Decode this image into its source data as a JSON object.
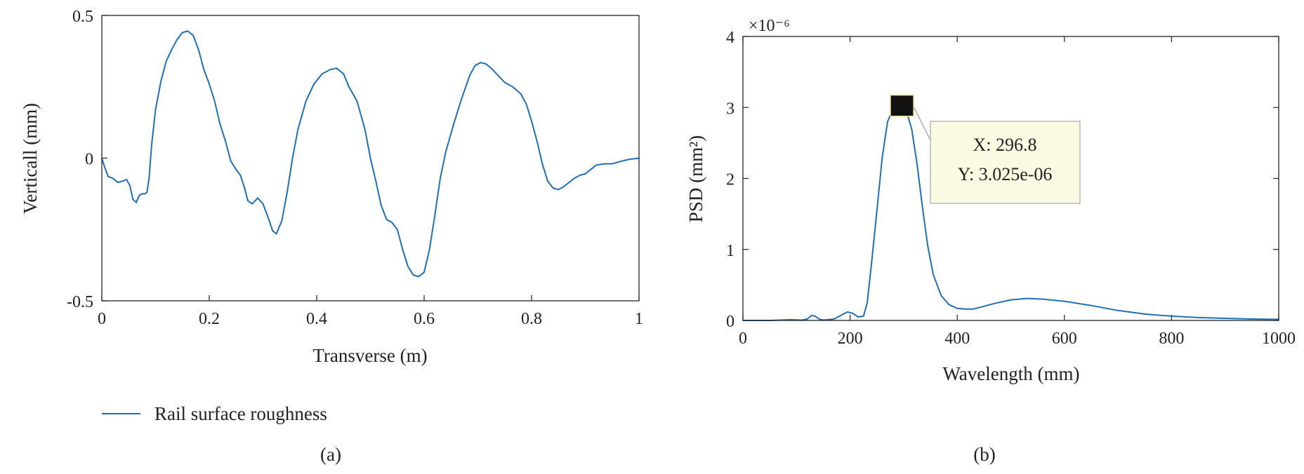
{
  "chart_data": [
    {
      "type": "line",
      "caption": "(a)",
      "xlabel": "Transverse (m)",
      "ylabel": "Verticall (mm)",
      "xlim": [
        0,
        1
      ],
      "ylim": [
        -0.5,
        0.5
      ],
      "xticks": [
        "0",
        "0.2",
        "0.4",
        "0.6",
        "0.8",
        "1"
      ],
      "yticks": [
        "-0.5",
        "0",
        "0.5"
      ],
      "legend": {
        "entries": [
          "Rail surface roughness"
        ],
        "placement": "below-left"
      },
      "grid": false,
      "series": [
        {
          "name": "Rail surface roughness",
          "color": "#1f6fb7",
          "points": [
            [
              0.0,
              0.0
            ],
            [
              0.005,
              -0.03
            ],
            [
              0.012,
              -0.065
            ],
            [
              0.02,
              -0.07
            ],
            [
              0.03,
              -0.085
            ],
            [
              0.04,
              -0.08
            ],
            [
              0.046,
              -0.075
            ],
            [
              0.052,
              -0.095
            ],
            [
              0.058,
              -0.145
            ],
            [
              0.064,
              -0.155
            ],
            [
              0.07,
              -0.13
            ],
            [
              0.075,
              -0.125
            ],
            [
              0.08,
              -0.125
            ],
            [
              0.084,
              -0.12
            ],
            [
              0.088,
              -0.07
            ],
            [
              0.093,
              0.05
            ],
            [
              0.1,
              0.17
            ],
            [
              0.11,
              0.27
            ],
            [
              0.12,
              0.34
            ],
            [
              0.13,
              0.38
            ],
            [
              0.14,
              0.415
            ],
            [
              0.15,
              0.44
            ],
            [
              0.16,
              0.445
            ],
            [
              0.17,
              0.43
            ],
            [
              0.18,
              0.38
            ],
            [
              0.19,
              0.31
            ],
            [
              0.2,
              0.26
            ],
            [
              0.21,
              0.2
            ],
            [
              0.22,
              0.12
            ],
            [
              0.23,
              0.06
            ],
            [
              0.24,
              -0.01
            ],
            [
              0.25,
              -0.04
            ],
            [
              0.258,
              -0.06
            ],
            [
              0.265,
              -0.1
            ],
            [
              0.272,
              -0.15
            ],
            [
              0.28,
              -0.16
            ],
            [
              0.29,
              -0.14
            ],
            [
              0.3,
              -0.16
            ],
            [
              0.31,
              -0.21
            ],
            [
              0.318,
              -0.255
            ],
            [
              0.325,
              -0.265
            ],
            [
              0.335,
              -0.22
            ],
            [
              0.345,
              -0.12
            ],
            [
              0.355,
              0.0
            ],
            [
              0.365,
              0.1
            ],
            [
              0.38,
              0.2
            ],
            [
              0.395,
              0.26
            ],
            [
              0.41,
              0.295
            ],
            [
              0.425,
              0.31
            ],
            [
              0.437,
              0.315
            ],
            [
              0.45,
              0.295
            ],
            [
              0.46,
              0.25
            ],
            [
              0.475,
              0.2
            ],
            [
              0.49,
              0.1
            ],
            [
              0.5,
              0.0
            ],
            [
              0.51,
              -0.08
            ],
            [
              0.52,
              -0.165
            ],
            [
              0.53,
              -0.215
            ],
            [
              0.54,
              -0.225
            ],
            [
              0.55,
              -0.25
            ],
            [
              0.56,
              -0.32
            ],
            [
              0.57,
              -0.38
            ],
            [
              0.58,
              -0.41
            ],
            [
              0.59,
              -0.415
            ],
            [
              0.6,
              -0.4
            ],
            [
              0.61,
              -0.32
            ],
            [
              0.62,
              -0.2
            ],
            [
              0.63,
              -0.07
            ],
            [
              0.64,
              0.02
            ],
            [
              0.655,
              0.12
            ],
            [
              0.67,
              0.21
            ],
            [
              0.685,
              0.29
            ],
            [
              0.695,
              0.325
            ],
            [
              0.705,
              0.335
            ],
            [
              0.715,
              0.33
            ],
            [
              0.725,
              0.315
            ],
            [
              0.74,
              0.285
            ],
            [
              0.75,
              0.265
            ],
            [
              0.765,
              0.25
            ],
            [
              0.78,
              0.225
            ],
            [
              0.79,
              0.19
            ],
            [
              0.8,
              0.13
            ],
            [
              0.81,
              0.06
            ],
            [
              0.82,
              -0.02
            ],
            [
              0.83,
              -0.08
            ],
            [
              0.84,
              -0.105
            ],
            [
              0.85,
              -0.11
            ],
            [
              0.86,
              -0.1
            ],
            [
              0.87,
              -0.085
            ],
            [
              0.88,
              -0.07
            ],
            [
              0.89,
              -0.06
            ],
            [
              0.9,
              -0.055
            ],
            [
              0.91,
              -0.04
            ],
            [
              0.92,
              -0.025
            ],
            [
              0.935,
              -0.02
            ],
            [
              0.95,
              -0.02
            ],
            [
              0.965,
              -0.012
            ],
            [
              0.98,
              -0.005
            ],
            [
              1.0,
              0.0
            ]
          ]
        }
      ]
    },
    {
      "type": "line",
      "caption": "(b)",
      "xlabel": "Wavelength (mm)",
      "ylabel": "PSD (mm²)",
      "y_multiplier": "×10⁻⁶",
      "xlim": [
        0,
        1000
      ],
      "ylim": [
        0,
        4
      ],
      "xticks": [
        "0",
        "200",
        "400",
        "600",
        "800",
        "1000"
      ],
      "yticks": [
        "0",
        "1",
        "2",
        "3",
        "4"
      ],
      "grid": false,
      "series": [
        {
          "color": "#1f6fb7",
          "points": [
            [
              0,
              0.0
            ],
            [
              50,
              0.0
            ],
            [
              70,
              0.005
            ],
            [
              90,
              0.01
            ],
            [
              110,
              0.005
            ],
            [
              120,
              0.02
            ],
            [
              128,
              0.07
            ],
            [
              135,
              0.06
            ],
            [
              142,
              0.02
            ],
            [
              150,
              0.005
            ],
            [
              170,
              0.02
            ],
            [
              185,
              0.08
            ],
            [
              195,
              0.12
            ],
            [
              205,
              0.1
            ],
            [
              215,
              0.05
            ],
            [
              225,
              0.06
            ],
            [
              232,
              0.25
            ],
            [
              240,
              0.8
            ],
            [
              250,
              1.55
            ],
            [
              260,
              2.3
            ],
            [
              270,
              2.8
            ],
            [
              280,
              2.98
            ],
            [
              290,
              3.02
            ],
            [
              296.8,
              3.025
            ],
            [
              305,
              2.95
            ],
            [
              315,
              2.7
            ],
            [
              325,
              2.2
            ],
            [
              335,
              1.6
            ],
            [
              345,
              1.05
            ],
            [
              355,
              0.65
            ],
            [
              370,
              0.35
            ],
            [
              385,
              0.22
            ],
            [
              400,
              0.17
            ],
            [
              415,
              0.16
            ],
            [
              430,
              0.16
            ],
            [
              445,
              0.19
            ],
            [
              470,
              0.24
            ],
            [
              500,
              0.29
            ],
            [
              530,
              0.31
            ],
            [
              560,
              0.3
            ],
            [
              600,
              0.27
            ],
            [
              650,
              0.21
            ],
            [
              700,
              0.14
            ],
            [
              750,
              0.09
            ],
            [
              800,
              0.06
            ],
            [
              850,
              0.04
            ],
            [
              900,
              0.03
            ],
            [
              950,
              0.02
            ],
            [
              1000,
              0.015
            ]
          ]
        }
      ],
      "datatip": {
        "x": 296.8,
        "y": 3.025e-06,
        "x_text": "X: 296.8",
        "y_text": "Y: 3.025e-06"
      }
    }
  ]
}
